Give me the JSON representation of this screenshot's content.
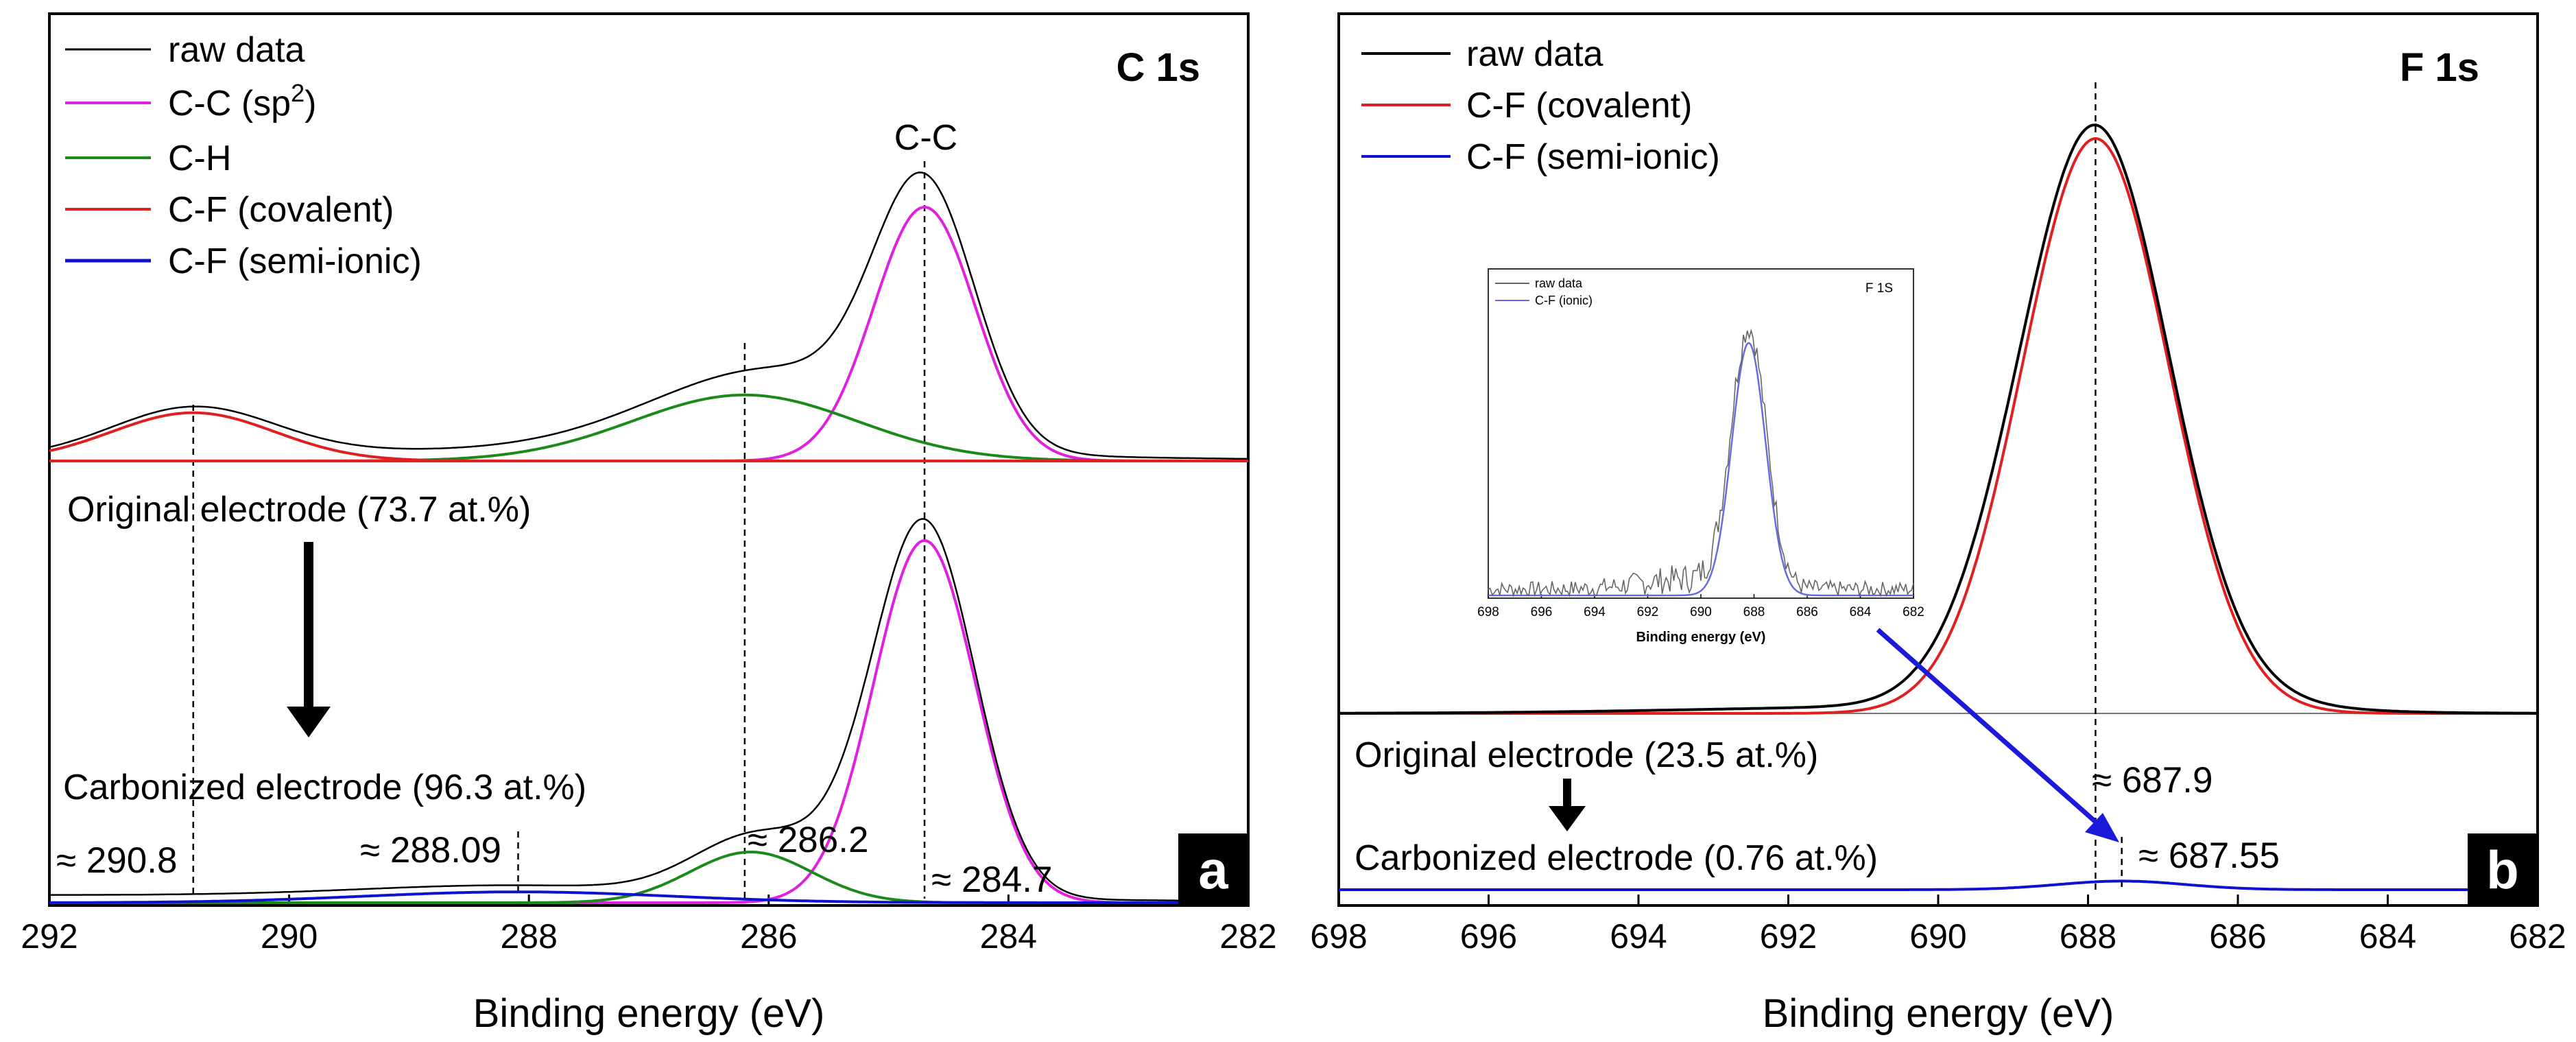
{
  "figure": {
    "colors": {
      "raw": "#000000",
      "cc": "#e020e0",
      "ch": "#1a8a1a",
      "cf_cov": "#e02020",
      "cf_semi": "#1010d0",
      "inset_raw": "#666666",
      "inset_fit": "#6a6ae0"
    }
  },
  "chart_data": [
    {
      "type": "line",
      "panel": "a",
      "title": "C 1s",
      "xlabel": "Binding energy (eV)",
      "ylabel": "",
      "xlim": [
        292,
        282
      ],
      "xticks": [
        292,
        290,
        288,
        286,
        284,
        282
      ],
      "x_reversed": true,
      "legend": [
        "raw data",
        "C-C (sp2)",
        "C-H",
        "C-F (covalent)",
        "C-F (semi-ionic)"
      ],
      "legend_placement": "top-left",
      "peak_label": "C-C",
      "upper_label": "Original electrode (73.7 at.%)",
      "lower_label": "Carbonized electrode (96.3 at.%)",
      "upper_spectrum": {
        "components": [
          {
            "name": "C-C (sp2)",
            "center": 284.7,
            "height": 1.0,
            "fwhm": 1.0
          },
          {
            "name": "C-H",
            "center": 286.2,
            "height": 0.26,
            "fwhm": 2.2
          },
          {
            "name": "C-F (covalent)",
            "center": 290.8,
            "height": 0.19,
            "fwhm": 1.6
          }
        ]
      },
      "lower_spectrum": {
        "components": [
          {
            "name": "C-C (sp2)",
            "center": 284.7,
            "height": 1.0,
            "fwhm": 1.0
          },
          {
            "name": "C-H",
            "center": 286.15,
            "height": 0.14,
            "fwhm": 1.2
          },
          {
            "name": "C-F (semi-ionic)",
            "center": 288.09,
            "height": 0.03,
            "fwhm": 3.0
          }
        ],
        "baseline_left": 0.04
      },
      "peak_markers": [
        290.8,
        288.09,
        286.2,
        284.7
      ],
      "annotations": [
        "≈ 290.8",
        "≈ 288.09",
        "≈ 286.2",
        "≈ 284.7"
      ],
      "badge": "a"
    },
    {
      "type": "line",
      "panel": "b",
      "title": "F 1s",
      "xlabel": "Binding energy (eV)",
      "ylabel": "",
      "xlim": [
        698,
        682
      ],
      "xticks": [
        698,
        696,
        694,
        692,
        690,
        688,
        686,
        684,
        682
      ],
      "x_reversed": true,
      "legend": [
        "raw data",
        "C-F (covalent)",
        "C-F (semi-ionic)"
      ],
      "legend_placement": "top-left",
      "upper_label": "Original electrode (23.5 at.%)",
      "lower_label": "Carbonized electrode (0.76 at.%)",
      "upper_spectrum": {
        "components": [
          {
            "name": "C-F (covalent)",
            "center": 687.9,
            "height": 1.0,
            "fwhm": 2.3
          }
        ]
      },
      "lower_spectrum": {
        "components": [
          {
            "name": "C-F (semi-ionic)",
            "center": 687.55,
            "height": 0.015,
            "fwhm": 2.0
          }
        ]
      },
      "peak_markers": [
        687.9,
        687.55
      ],
      "annotations": [
        "≈ 687.9",
        "≈ 687.55"
      ],
      "badge": "b",
      "inset": {
        "title": "F 1S",
        "xlabel": "Binding energy (eV)",
        "xlim": [
          698,
          682
        ],
        "xticks": [
          698,
          696,
          694,
          692,
          690,
          688,
          686,
          684,
          682
        ],
        "legend": [
          "raw data",
          "C-F (ionic)"
        ],
        "components": [
          {
            "name": "C-F (ionic)",
            "center": 688.2,
            "height": 1.0,
            "fwhm": 1.5
          }
        ]
      }
    }
  ]
}
